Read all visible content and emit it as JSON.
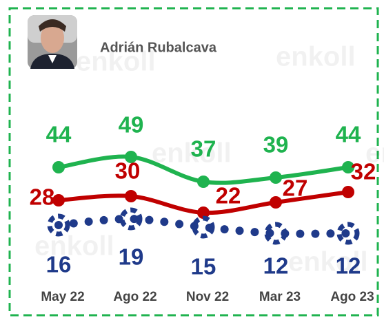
{
  "chart_data": {
    "type": "line",
    "title": "Adrián Rubalcava",
    "watermark": "enkoll",
    "categories": [
      "May 22",
      "Ago 22",
      "Nov 22",
      "Mar 23",
      "Ago 23"
    ],
    "series": [
      {
        "color": "#1fb34f",
        "style": "solid",
        "values": [
          44,
          49,
          37,
          39,
          44
        ]
      },
      {
        "color": "#c00000",
        "style": "solid",
        "values": [
          28,
          30,
          22,
          27,
          32
        ]
      },
      {
        "color": "#1f3a8a",
        "style": "dotted",
        "values": [
          16,
          19,
          15,
          12,
          12
        ]
      }
    ]
  }
}
